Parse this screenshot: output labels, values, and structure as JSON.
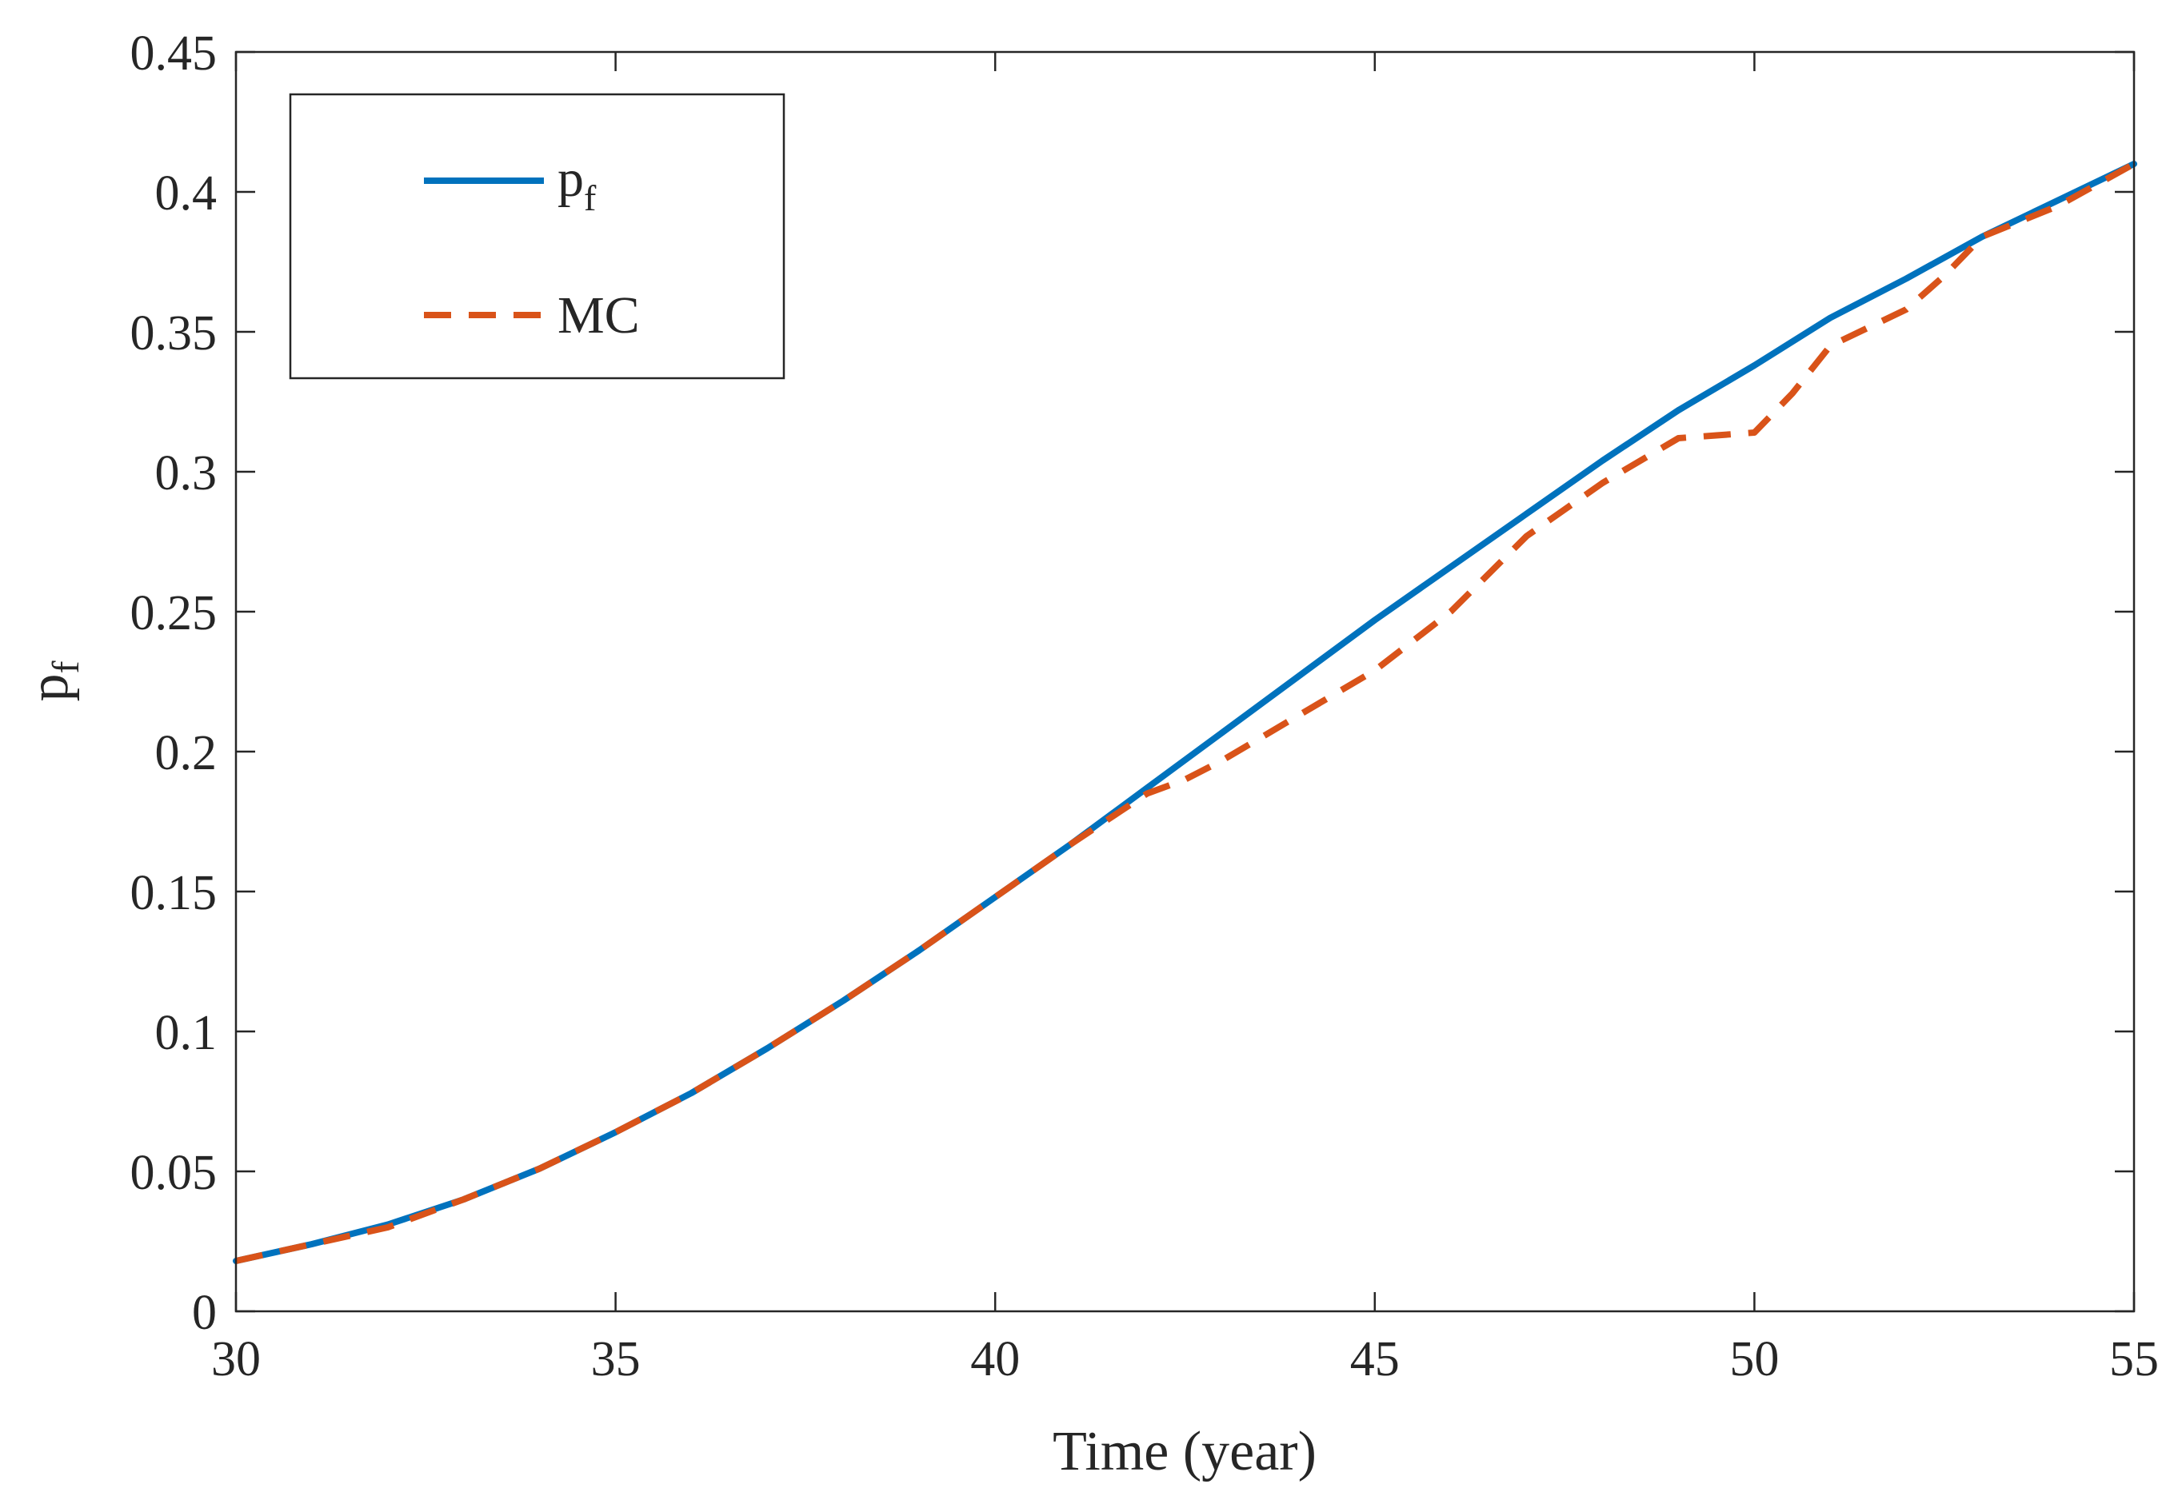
{
  "chart_data": {
    "type": "line",
    "title": "",
    "xlabel": "Time (year)",
    "ylabel": {
      "base": "p",
      "sub": "f"
    },
    "xlim": [
      30,
      55
    ],
    "ylim": [
      0,
      0.45
    ],
    "xticks": [
      30,
      35,
      40,
      45,
      50,
      55
    ],
    "xtick_labels": [
      "30",
      "35",
      "40",
      "45",
      "50",
      "55"
    ],
    "yticks": [
      0,
      0.05,
      0.1,
      0.15,
      0.2,
      0.25,
      0.3,
      0.35,
      0.4,
      0.45
    ],
    "ytick_labels": [
      "0",
      "0.05",
      "0.1",
      "0.15",
      "0.2",
      "0.25",
      "0.3",
      "0.35",
      "0.4",
      "0.45"
    ],
    "grid": false,
    "legend_position": "top-left",
    "series": [
      {
        "name": "pf",
        "legend_base": "p",
        "legend_sub": "f",
        "style": "solid",
        "color": "#0072BD",
        "x": [
          30,
          31,
          32,
          33,
          34,
          35,
          36,
          37,
          38,
          39,
          40,
          41,
          42,
          43,
          44,
          45,
          46,
          47,
          48,
          49,
          50,
          51,
          52,
          53,
          54,
          55
        ],
        "y": [
          0.018,
          0.024,
          0.031,
          0.04,
          0.051,
          0.064,
          0.078,
          0.094,
          0.111,
          0.129,
          0.148,
          0.167,
          0.187,
          0.207,
          0.227,
          0.247,
          0.266,
          0.285,
          0.304,
          0.322,
          0.338,
          0.355,
          0.369,
          0.384,
          0.397,
          0.41
        ]
      },
      {
        "name": "MC",
        "legend_base": "MC",
        "legend_sub": "",
        "style": "dashed",
        "color": "#D95319",
        "x": [
          30,
          31,
          32,
          33,
          34,
          35,
          36,
          37,
          38,
          39,
          40,
          41,
          42,
          42.5,
          43,
          44,
          45,
          46,
          47,
          48,
          49,
          49.5,
          50,
          50.5,
          51,
          52,
          52.5,
          53,
          54,
          55
        ],
        "y": [
          0.018,
          0.024,
          0.03,
          0.04,
          0.051,
          0.064,
          0.078,
          0.094,
          0.111,
          0.129,
          0.148,
          0.167,
          0.185,
          0.19,
          0.197,
          0.213,
          0.229,
          0.25,
          0.277,
          0.296,
          0.312,
          0.313,
          0.314,
          0.328,
          0.345,
          0.358,
          0.37,
          0.384,
          0.395,
          0.41
        ]
      }
    ]
  }
}
